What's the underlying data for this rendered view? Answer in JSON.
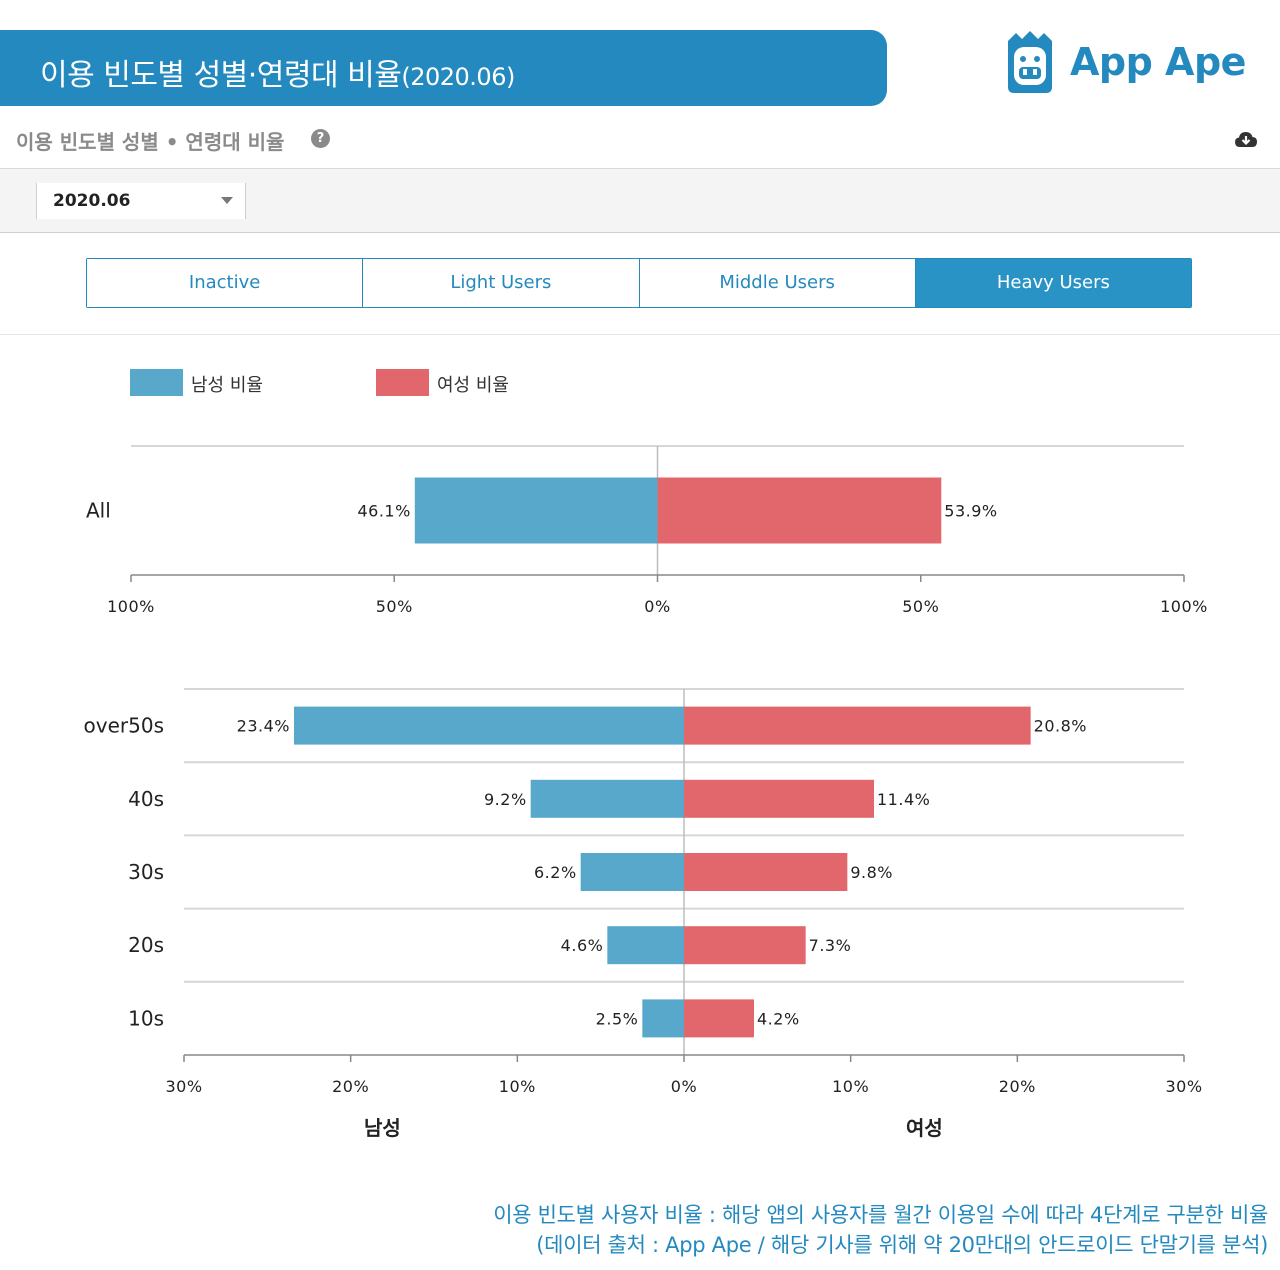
{
  "header": {
    "title": "이용 빈도별 성별·연령대 비율",
    "title_date": "(2020.06)",
    "brand": "App Ape"
  },
  "section": {
    "title": "이용 빈도별 성별 • 연령대 비율",
    "help_icon": "question-circle-icon",
    "download_icon": "cloud-download-icon"
  },
  "filter": {
    "selected": "2020.06"
  },
  "tabs": [
    "Inactive",
    "Light Users",
    "Middle Users",
    "Heavy Users"
  ],
  "active_tab": "Heavy Users",
  "legend": {
    "male": "남성 비율",
    "female": "여성 비율"
  },
  "colors": {
    "accent": "#2389bf",
    "male": "#58a8cb",
    "female": "#e2676c"
  },
  "axis_titles": {
    "left": "남성",
    "right": "여성"
  },
  "chart_data": [
    {
      "type": "bar",
      "orientation": "horizontal-diverging",
      "categories": [
        "All"
      ],
      "series": [
        {
          "name": "남성 비율",
          "values": [
            46.1
          ],
          "labels": [
            "46.1%"
          ]
        },
        {
          "name": "여성 비율",
          "values": [
            53.9
          ],
          "labels": [
            "53.9%"
          ]
        }
      ],
      "xlim": [
        -100,
        100
      ],
      "ticks": [
        "100%",
        "50%",
        "0%",
        "50%",
        "100%"
      ]
    },
    {
      "type": "bar",
      "orientation": "horizontal-diverging",
      "categories": [
        "over50s",
        "40s",
        "30s",
        "20s",
        "10s"
      ],
      "series": [
        {
          "name": "남성 비율",
          "values": [
            23.4,
            9.2,
            6.2,
            4.6,
            2.5
          ],
          "labels": [
            "23.4%",
            "9.2%",
            "6.2%",
            "4.6%",
            "2.5%"
          ]
        },
        {
          "name": "여성 비율",
          "values": [
            20.8,
            11.4,
            9.8,
            7.3,
            4.2
          ],
          "labels": [
            "20.8%",
            "11.4%",
            "9.8%",
            "7.3%",
            "4.2%"
          ]
        }
      ],
      "xlim": [
        -30,
        30
      ],
      "ticks": [
        "30%",
        "20%",
        "10%",
        "0%",
        "10%",
        "20%",
        "30%"
      ],
      "xlabel_left": "남성",
      "xlabel_right": "여성"
    }
  ],
  "footnote": {
    "line1": "이용 빈도별 사용자 비율 : 해당 앱의 사용자를 월간 이용일 수에 따라 4단계로 구분한 비율",
    "line2": "(데이터 출처 : App Ape / 해당 기사를 위해 약 20만대의 안드로이드 단말기를 분석)"
  }
}
